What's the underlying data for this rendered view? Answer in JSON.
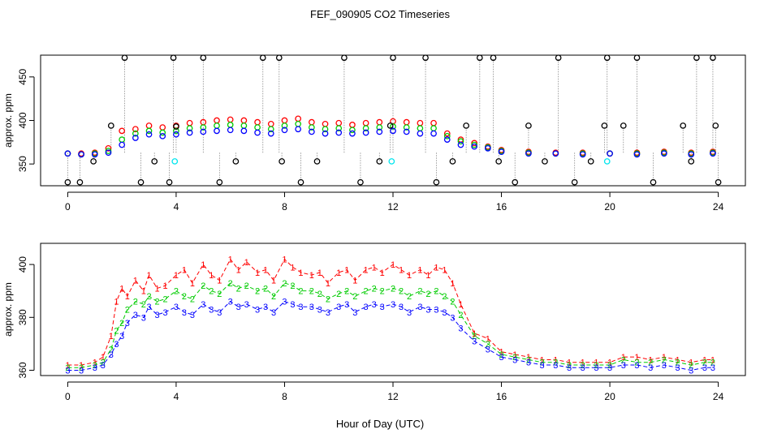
{
  "figure": {
    "title": "FEF_090905  CO2 Timeseries",
    "xlabel": "Hour of Day (UTC)"
  },
  "colors": {
    "series1": "#ff0000",
    "series2": "#00cc00",
    "series3": "#0000ff",
    "calibration_high": "#000000",
    "calibration_target": "#00e5ee",
    "connector": "#888888"
  },
  "chart_data": [
    {
      "type": "scatter",
      "ylabel": "approx. ppm",
      "xlim": [
        -1,
        25
      ],
      "ylim": [
        325,
        475
      ],
      "xticks": [
        0,
        4,
        8,
        12,
        16,
        20,
        24
      ],
      "yticks": [
        350,
        400,
        450
      ],
      "grid": false,
      "legend": "none",
      "series": [
        {
          "x": [
            0.0,
            0.5,
            1.0,
            1.5,
            2.0,
            2.5,
            3.0,
            3.5,
            4.0,
            4.5,
            5.0,
            5.5,
            6.0,
            6.5,
            7.0,
            7.5,
            8.0,
            8.5,
            9.0,
            9.5,
            10.0,
            10.5,
            11.0,
            11.5,
            12.0,
            12.5,
            13.0,
            13.5,
            14.0,
            14.5,
            15.0,
            15.5,
            16.0,
            17.0,
            18.0,
            19.0,
            20.0,
            21.0,
            22.0,
            23.0,
            23.8
          ],
          "values": [
            362,
            362,
            363,
            368,
            388,
            390,
            394,
            392,
            394,
            397,
            398,
            400,
            401,
            400,
            398,
            396,
            400,
            402,
            398,
            396,
            397,
            395,
            397,
            398,
            399,
            398,
            397,
            397,
            385,
            378,
            374,
            370,
            366,
            364,
            363,
            363,
            362,
            363,
            364,
            363,
            364
          ]
        },
        {
          "x": [
            0.0,
            0.5,
            1.0,
            1.5,
            2.0,
            2.5,
            3.0,
            3.5,
            4.0,
            4.5,
            5.0,
            5.5,
            6.0,
            6.5,
            7.0,
            7.5,
            8.0,
            8.5,
            9.0,
            9.5,
            10.0,
            10.5,
            11.0,
            11.5,
            12.0,
            12.5,
            13.0,
            13.5,
            14.0,
            14.5,
            15.0,
            15.5,
            16.0,
            17.0,
            18.0,
            19.0,
            20.0,
            21.0,
            22.0,
            23.0,
            23.8
          ],
          "values": [
            362,
            361,
            362,
            365,
            378,
            385,
            388,
            386,
            388,
            391,
            392,
            394,
            395,
            394,
            392,
            390,
            394,
            396,
            392,
            390,
            391,
            389,
            391,
            392,
            393,
            392,
            391,
            391,
            382,
            376,
            372,
            369,
            365,
            363,
            362,
            362,
            362,
            362,
            363,
            362,
            363
          ]
        },
        {
          "x": [
            0.0,
            0.5,
            1.0,
            1.5,
            2.0,
            2.5,
            3.0,
            3.5,
            4.0,
            4.5,
            5.0,
            5.5,
            6.0,
            6.5,
            7.0,
            7.5,
            8.0,
            8.5,
            9.0,
            9.5,
            10.0,
            10.5,
            11.0,
            11.5,
            12.0,
            12.5,
            13.0,
            13.5,
            14.0,
            14.5,
            15.0,
            15.5,
            16.0,
            17.0,
            18.0,
            19.0,
            20.0,
            21.0,
            22.0,
            23.0,
            23.8
          ],
          "values": [
            362,
            361,
            361,
            363,
            372,
            380,
            384,
            382,
            384,
            386,
            387,
            388,
            389,
            388,
            386,
            385,
            389,
            390,
            387,
            385,
            386,
            385,
            386,
            387,
            388,
            387,
            385,
            385,
            378,
            372,
            370,
            368,
            364,
            362,
            362,
            361,
            362,
            361,
            362,
            361,
            362
          ]
        },
        {
          "x": [
            0.0,
            0.45,
            0.95,
            1.6,
            2.1,
            2.7,
            3.2,
            3.75,
            3.9,
            4.0,
            5.0,
            5.6,
            6.2,
            7.2,
            7.8,
            7.9,
            8.6,
            9.2,
            10.2,
            10.8,
            11.5,
            11.9,
            12.0,
            13.2,
            13.6,
            14.2,
            14.7,
            15.2,
            15.7,
            15.9,
            16.5,
            17.0,
            17.6,
            18.1,
            18.7,
            19.3,
            19.8,
            19.9,
            20.5,
            21.0,
            21.6,
            22.7,
            23.0,
            23.2,
            23.8,
            23.9,
            24.0
          ],
          "values": [
            329,
            329,
            353,
            394,
            472,
            329,
            353,
            329,
            472,
            393,
            472,
            329,
            353,
            472,
            472,
            353,
            329,
            353,
            472,
            329,
            353,
            394,
            472,
            472,
            329,
            353,
            394,
            472,
            472,
            353,
            329,
            394,
            353,
            472,
            329,
            353,
            394,
            472,
            394,
            472,
            329,
            394,
            353,
            472,
            472,
            394,
            329
          ]
        },
        {
          "x": [
            3.95,
            11.95,
            19.9
          ],
          "values": [
            353,
            353,
            353
          ]
        }
      ]
    },
    {
      "type": "line",
      "ylabel": "approx. ppm",
      "xlim": [
        -1,
        25
      ],
      "ylim": [
        358,
        408
      ],
      "xticks": [
        0,
        4,
        8,
        12,
        16,
        20,
        24
      ],
      "yticks": [
        360,
        380,
        400
      ],
      "grid": false,
      "legend": "none",
      "series": [
        {
          "marker": "1",
          "x": [
            0.0,
            0.5,
            1.0,
            1.3,
            1.6,
            1.8,
            2.0,
            2.2,
            2.5,
            2.8,
            3.0,
            3.3,
            3.6,
            4.0,
            4.3,
            4.6,
            5.0,
            5.3,
            5.6,
            6.0,
            6.3,
            6.6,
            7.0,
            7.3,
            7.6,
            8.0,
            8.3,
            8.6,
            9.0,
            9.3,
            9.6,
            10.0,
            10.3,
            10.6,
            11.0,
            11.3,
            11.6,
            12.0,
            12.3,
            12.6,
            13.0,
            13.3,
            13.6,
            13.9,
            14.2,
            14.5,
            15.0,
            15.5,
            16.0,
            16.5,
            17.0,
            17.5,
            18.0,
            18.5,
            19.0,
            19.5,
            20.0,
            20.5,
            21.0,
            21.5,
            22.0,
            22.5,
            23.0,
            23.5,
            23.8
          ],
          "values": [
            362,
            362,
            363,
            365,
            373,
            386,
            391,
            388,
            394,
            390,
            396,
            391,
            392,
            396,
            398,
            393,
            400,
            396,
            394,
            402,
            398,
            401,
            397,
            398,
            394,
            402,
            399,
            397,
            396,
            397,
            393,
            397,
            398,
            394,
            398,
            399,
            397,
            400,
            398,
            396,
            398,
            396,
            399,
            398,
            393,
            385,
            374,
            372,
            367,
            366,
            365,
            364,
            364,
            363,
            363,
            363,
            363,
            365,
            365,
            364,
            365,
            364,
            363,
            364,
            364
          ]
        },
        {
          "marker": "2",
          "x": [
            0.0,
            0.5,
            1.0,
            1.3,
            1.6,
            1.8,
            2.0,
            2.2,
            2.5,
            2.8,
            3.0,
            3.3,
            3.6,
            4.0,
            4.3,
            4.6,
            5.0,
            5.3,
            5.6,
            6.0,
            6.3,
            6.6,
            7.0,
            7.3,
            7.6,
            8.0,
            8.3,
            8.6,
            9.0,
            9.3,
            9.6,
            10.0,
            10.3,
            10.6,
            11.0,
            11.3,
            11.6,
            12.0,
            12.3,
            12.6,
            13.0,
            13.3,
            13.6,
            13.9,
            14.2,
            14.5,
            15.0,
            15.5,
            16.0,
            16.5,
            17.0,
            17.5,
            18.0,
            18.5,
            19.0,
            19.5,
            20.0,
            20.5,
            21.0,
            21.5,
            22.0,
            22.5,
            23.0,
            23.5,
            23.8
          ],
          "values": [
            361,
            361,
            362,
            363,
            368,
            375,
            378,
            383,
            386,
            385,
            388,
            386,
            387,
            390,
            388,
            387,
            392,
            390,
            389,
            393,
            391,
            392,
            390,
            391,
            388,
            393,
            392,
            390,
            390,
            389,
            387,
            389,
            390,
            388,
            390,
            391,
            390,
            391,
            390,
            388,
            390,
            389,
            390,
            388,
            386,
            381,
            373,
            370,
            366,
            365,
            364,
            363,
            363,
            362,
            362,
            362,
            362,
            364,
            363,
            363,
            364,
            363,
            362,
            363,
            363
          ]
        },
        {
          "marker": "3",
          "x": [
            0.0,
            0.5,
            1.0,
            1.3,
            1.6,
            1.8,
            2.0,
            2.2,
            2.5,
            2.8,
            3.0,
            3.3,
            3.6,
            4.0,
            4.3,
            4.6,
            5.0,
            5.3,
            5.6,
            6.0,
            6.3,
            6.6,
            7.0,
            7.3,
            7.6,
            8.0,
            8.3,
            8.6,
            9.0,
            9.3,
            9.6,
            10.0,
            10.3,
            10.6,
            11.0,
            11.3,
            11.6,
            12.0,
            12.3,
            12.6,
            13.0,
            13.3,
            13.6,
            13.9,
            14.2,
            14.5,
            15.0,
            15.5,
            16.0,
            16.5,
            17.0,
            17.5,
            18.0,
            18.5,
            19.0,
            19.5,
            20.0,
            20.5,
            21.0,
            21.5,
            22.0,
            22.5,
            23.0,
            23.5,
            23.8
          ],
          "values": [
            360,
            360,
            361,
            362,
            366,
            370,
            373,
            378,
            381,
            380,
            384,
            381,
            382,
            384,
            382,
            381,
            385,
            383,
            382,
            386,
            384,
            385,
            383,
            384,
            382,
            386,
            385,
            384,
            384,
            383,
            382,
            384,
            385,
            382,
            384,
            385,
            384,
            385,
            384,
            382,
            384,
            383,
            383,
            382,
            380,
            376,
            371,
            368,
            365,
            364,
            363,
            362,
            362,
            361,
            361,
            361,
            361,
            362,
            362,
            361,
            362,
            361,
            360,
            361,
            361
          ]
        }
      ]
    }
  ]
}
